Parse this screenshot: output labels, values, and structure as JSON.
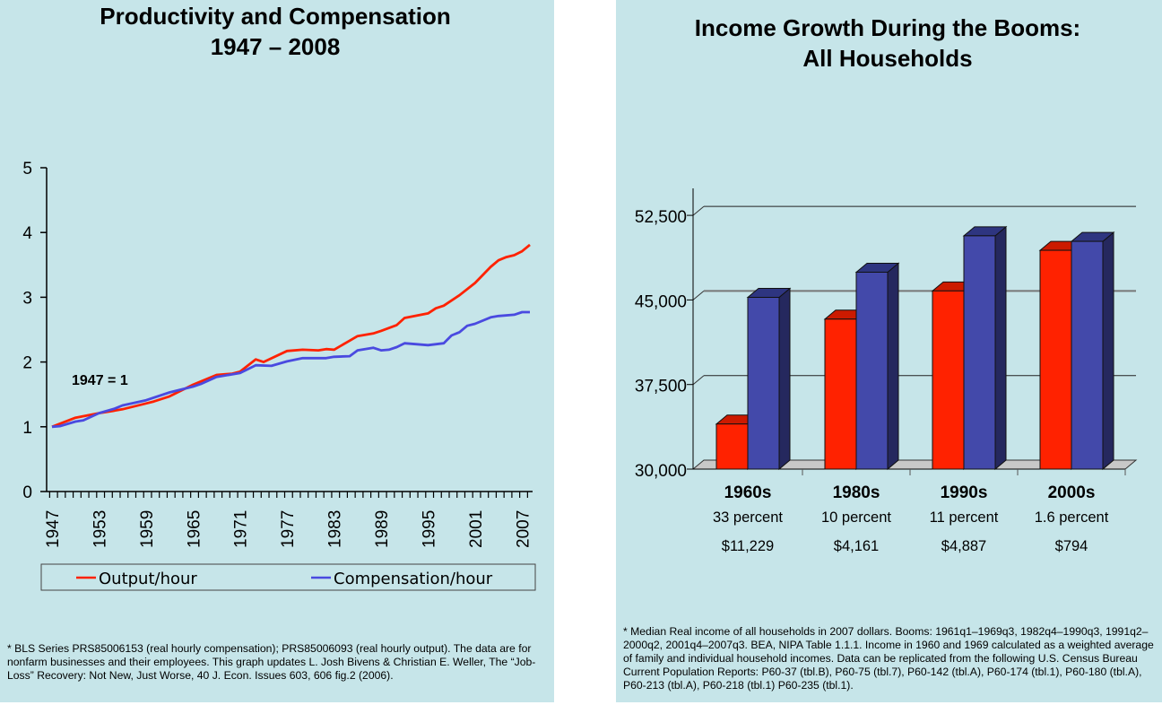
{
  "colors": {
    "background": "#c6e5e9",
    "output": "#ff2200",
    "compensation": "#4a4ae0",
    "bar_red": "#ff2200",
    "bar_blue": "#4349aa"
  },
  "chart_data": [
    {
      "type": "line",
      "title": [
        "Productivity and Compensation",
        "1947 – 2008"
      ],
      "annotation": "1947 = 1",
      "ylim": [
        0,
        5
      ],
      "yticks": [
        "0",
        "1",
        "2",
        "3",
        "4",
        "5"
      ],
      "xlim": [
        1947,
        2008
      ],
      "xtick_labels": [
        "1947",
        "1953",
        "1959",
        "1965",
        "1971",
        "1977",
        "1983",
        "1989",
        "1995",
        "2001",
        "2007"
      ],
      "legend": "bottom",
      "grid": false,
      "series": [
        {
          "name": "Output/hour",
          "color": "#ff2200",
          "x": [
            1947,
            1950,
            1953,
            1955,
            1956,
            1959,
            1960,
            1962,
            1965,
            1966,
            1968,
            1970,
            1971,
            1973,
            1974,
            1977,
            1979,
            1981,
            1982,
            1983,
            1985,
            1986,
            1988,
            1989,
            1991,
            1992,
            1995,
            1996,
            1997,
            1999,
            2001,
            2003,
            2004,
            2005,
            2006,
            2007,
            2008
          ],
          "y": [
            1.0,
            1.14,
            1.21,
            1.25,
            1.27,
            1.36,
            1.39,
            1.47,
            1.65,
            1.7,
            1.8,
            1.82,
            1.85,
            2.04,
            2.0,
            2.17,
            2.19,
            2.18,
            2.2,
            2.19,
            2.33,
            2.4,
            2.44,
            2.48,
            2.57,
            2.68,
            2.75,
            2.83,
            2.87,
            3.03,
            3.22,
            3.47,
            3.57,
            3.62,
            3.65,
            3.71,
            3.81
          ]
        },
        {
          "name": "Compensation/hour",
          "color": "#4a4ae0",
          "x": [
            1947,
            1948,
            1950,
            1951,
            1953,
            1955,
            1956,
            1959,
            1962,
            1965,
            1966,
            1968,
            1971,
            1973,
            1975,
            1977,
            1979,
            1982,
            1983,
            1985,
            1986,
            1988,
            1989,
            1990,
            1991,
            1992,
            1995,
            1997,
            1998,
            1999,
            2000,
            2001,
            2003,
            2004,
            2006,
            2007,
            2008
          ],
          "y": [
            1.0,
            1.01,
            1.08,
            1.1,
            1.21,
            1.28,
            1.33,
            1.41,
            1.53,
            1.62,
            1.66,
            1.77,
            1.83,
            1.95,
            1.94,
            2.01,
            2.06,
            2.06,
            2.08,
            2.09,
            2.18,
            2.22,
            2.18,
            2.19,
            2.23,
            2.29,
            2.26,
            2.29,
            2.41,
            2.46,
            2.56,
            2.59,
            2.69,
            2.71,
            2.73,
            2.77,
            2.77
          ]
        }
      ],
      "footnote": "* BLS Series PRS85006153 (real hourly compensation); PRS85006093 (real hourly output). The data are for nonfarm businesses and their employees. This graph updates L. Josh Bivens & Christian E. Weller, The “Job-Loss” Recovery: Not New, Just Worse, 40 J. Econ. Issues 603, 606 fig.2 (2006)."
    },
    {
      "type": "bar",
      "title": [
        "Income Growth During the Booms:",
        "All Households"
      ],
      "ylim": [
        30000,
        52500
      ],
      "yticks": [
        "30,000",
        "37,500",
        "45,000",
        "52,500"
      ],
      "three_d": true,
      "grid": true,
      "categories": [
        "1960s",
        "1980s",
        "1990s",
        "2000s"
      ],
      "category_growth": [
        "33 percent",
        "10 percent",
        "11 percent",
        "1.6 percent"
      ],
      "category_gain": [
        "$11,229",
        "$4,161",
        "$4,887",
        "$794"
      ],
      "series": [
        {
          "color": "#ff2200",
          "values": [
            34000,
            43300,
            45800,
            49400
          ]
        },
        {
          "color": "#4349aa",
          "values": [
            45229,
            47461,
            50687,
            50194
          ]
        }
      ],
      "footnote": "* Median Real income of all households in 2007 dollars. Booms: 1961q1–1969q3, 1982q4–1990q3, 1991q2–2000q2, 2001q4–2007q3. BEA, NIPA Table 1.1.1. Income in 1960 and 1969 calculated as a weighted average of family and individual household incomes. Data can be replicated from the following U.S. Census Bureau Current Population Reports: P60-37 (tbl.B), P60-75 (tbl.7), P60-142 (tbl.A), P60-174 (tbl.1), P60-180 (tbl.A), P60-213 (tbl.A), P60-218 (tbl.1) P60-235 (tbl.1)."
    }
  ]
}
